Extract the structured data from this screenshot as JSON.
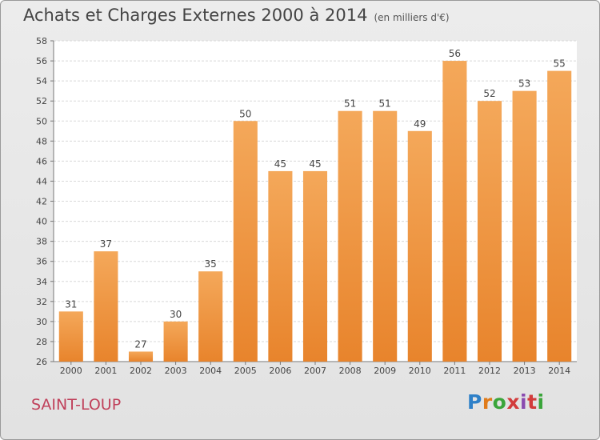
{
  "chart_data": {
    "type": "bar",
    "title": "Achats et Charges Externes 2000 à 2014",
    "subtitle": "(en milliers d'€)",
    "categories": [
      "2000",
      "2001",
      "2002",
      "2003",
      "2004",
      "2005",
      "2006",
      "2007",
      "2008",
      "2009",
      "2010",
      "2011",
      "2012",
      "2013",
      "2014"
    ],
    "values": [
      31,
      37,
      27,
      30,
      35,
      50,
      45,
      45,
      51,
      51,
      49,
      56,
      52,
      53,
      55
    ],
    "ylim": [
      26,
      58
    ],
    "yticks": [
      26,
      28,
      30,
      32,
      34,
      36,
      38,
      40,
      42,
      44,
      46,
      48,
      50,
      52,
      54,
      56,
      58
    ],
    "grid": true,
    "bar_color": "#e8842c",
    "bar_color_light": "#f4a85a",
    "label": "SAINT-LOUP"
  },
  "logo": {
    "text": "Proxiti"
  }
}
